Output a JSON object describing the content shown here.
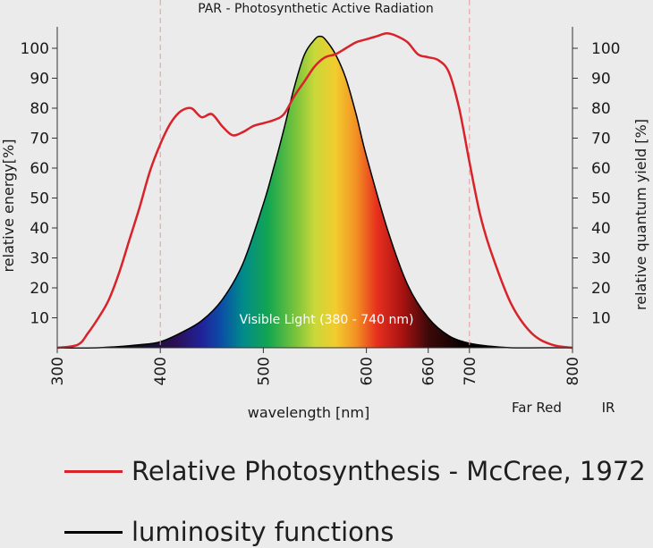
{
  "chart_data": {
    "type": "line",
    "title": "PAR - Photosynthetic Active Radiation",
    "xlabel": "wavelength [nm]",
    "ylabel_left": "relative energy[%]",
    "ylabel_right": "relative quantum yield [%]",
    "xlim": [
      300,
      800
    ],
    "ylim": [
      0,
      105
    ],
    "x_ticks": [
      300,
      400,
      500,
      600,
      660,
      700,
      800
    ],
    "y_ticks": [
      10,
      20,
      30,
      40,
      50,
      60,
      70,
      80,
      90,
      100
    ],
    "extra_x_labels": [
      "Far Red",
      "IR"
    ],
    "par_range": [
      400,
      700
    ],
    "visible_band_label": "Visible Light (380 -  740 nm)",
    "series": [
      {
        "name": "Relative Photosynthesis - McCree, 1972",
        "color": "#d8232a",
        "x": [
          300,
          320,
          330,
          340,
          350,
          360,
          370,
          380,
          390,
          400,
          410,
          420,
          430,
          440,
          450,
          460,
          470,
          480,
          490,
          500,
          510,
          520,
          530,
          540,
          550,
          560,
          570,
          580,
          590,
          600,
          610,
          620,
          630,
          640,
          650,
          660,
          670,
          680,
          690,
          700,
          710,
          720,
          740,
          760,
          780,
          800
        ],
        "y": [
          0,
          1,
          5,
          10,
          16,
          25,
          36,
          47,
          59,
          68,
          75,
          79,
          80,
          77,
          78,
          74,
          71,
          72,
          74,
          75,
          76,
          78,
          84,
          89,
          94,
          97,
          98,
          100,
          102,
          103,
          104,
          105,
          104,
          102,
          98,
          97,
          96,
          92,
          80,
          62,
          45,
          33,
          15,
          5,
          1,
          0
        ]
      },
      {
        "name": "luminosity functions",
        "color": "#000000",
        "x": [
          300,
          340,
          380,
          400,
          420,
          440,
          460,
          480,
          500,
          510,
          520,
          530,
          540,
          550,
          555,
          560,
          570,
          580,
          590,
          600,
          620,
          640,
          660,
          680,
          700,
          720,
          740,
          770,
          800
        ],
        "y": [
          0,
          0,
          1,
          2,
          5,
          9,
          16,
          28,
          48,
          60,
          73,
          87,
          98,
          103,
          104,
          103,
          98,
          90,
          78,
          64,
          40,
          21,
          10,
          4,
          1.5,
          0.5,
          0,
          0,
          0
        ]
      }
    ]
  }
}
